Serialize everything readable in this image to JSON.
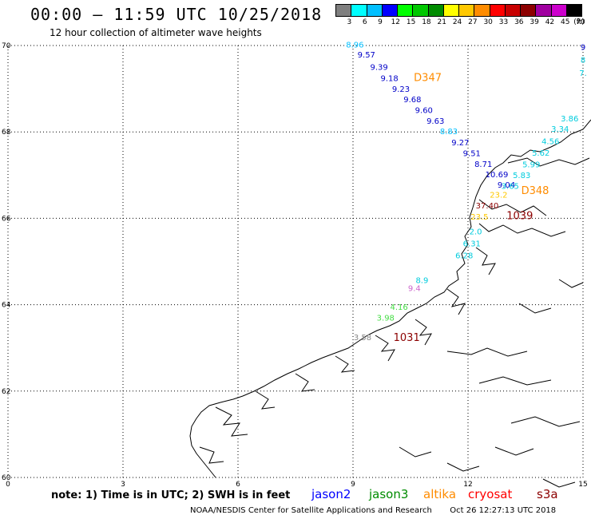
{
  "header": {
    "title": "00:00 — 11:59 UTC 10/25/2018",
    "subtitle": "12 hour collection of altimeter wave heights"
  },
  "color_scale": {
    "unit_label": "(ft)",
    "bins": [
      {
        "label": "3",
        "color": "#7f7f7f"
      },
      {
        "label": "6",
        "color": "#00ffff"
      },
      {
        "label": "9",
        "color": "#00bfff"
      },
      {
        "label": "12",
        "color": "#0000ff"
      },
      {
        "label": "15",
        "color": "#00ff00"
      },
      {
        "label": "18",
        "color": "#00c800"
      },
      {
        "label": "21",
        "color": "#008c00"
      },
      {
        "label": "24",
        "color": "#ffff00"
      },
      {
        "label": "27",
        "color": "#ffc800"
      },
      {
        "label": "30",
        "color": "#ff8c00"
      },
      {
        "label": "33",
        "color": "#ff0000"
      },
      {
        "label": "36",
        "color": "#c80000"
      },
      {
        "label": "39",
        "color": "#8c0000"
      },
      {
        "label": "42",
        "color": "#a000a0"
      },
      {
        "label": "45",
        "color": "#cc00cc"
      },
      {
        "label": "70",
        "color": "#000000"
      }
    ]
  },
  "map": {
    "x_ticks": [
      "0",
      "3",
      "6",
      "9",
      "12",
      "15"
    ],
    "y_ticks": [
      "60",
      "62",
      "64",
      "66",
      "68",
      "70"
    ],
    "observations": [
      {
        "lon": 9.05,
        "lat": 69.95,
        "text": "8.96",
        "color": "#00bfff"
      },
      {
        "lon": 9.35,
        "lat": 69.72,
        "text": "9.57",
        "color": "#0000c8"
      },
      {
        "lon": 9.68,
        "lat": 69.44,
        "text": "9.39",
        "color": "#0000c8"
      },
      {
        "lon": 9.95,
        "lat": 69.18,
        "text": "9.18",
        "color": "#0000c8"
      },
      {
        "lon": 10.25,
        "lat": 68.93,
        "text": "9.23",
        "color": "#0000c8"
      },
      {
        "lon": 10.55,
        "lat": 68.69,
        "text": "9.68",
        "color": "#0000c8"
      },
      {
        "lon": 10.85,
        "lat": 68.44,
        "text": "9.60",
        "color": "#0000c8"
      },
      {
        "lon": 11.15,
        "lat": 68.19,
        "text": "9.63",
        "color": "#0000c8"
      },
      {
        "lon": 11.5,
        "lat": 67.95,
        "text": "8.83",
        "color": "#00bfff"
      },
      {
        "lon": 11.8,
        "lat": 67.69,
        "text": "9.27",
        "color": "#0000c8"
      },
      {
        "lon": 12.1,
        "lat": 67.44,
        "text": "9.51",
        "color": "#0000c8"
      },
      {
        "lon": 12.4,
        "lat": 67.19,
        "text": "8.71",
        "color": "#0000c8"
      },
      {
        "lon": 12.75,
        "lat": 66.95,
        "text": "10.69",
        "color": "#0000c8"
      },
      {
        "lon": 13.0,
        "lat": 66.71,
        "text": "9.04",
        "color": "#0000c8"
      },
      {
        "lon": 10.95,
        "lat": 69.18,
        "text": "D347",
        "color": "#ff8c00",
        "big": true
      },
      {
        "lon": 14.65,
        "lat": 68.24,
        "text": "3.86",
        "color": "#00ccdd"
      },
      {
        "lon": 14.4,
        "lat": 68.0,
        "text": "3.34",
        "color": "#00ccdd"
      },
      {
        "lon": 14.15,
        "lat": 67.72,
        "text": "4.56",
        "color": "#00ccdd"
      },
      {
        "lon": 13.9,
        "lat": 67.45,
        "text": "5.62",
        "color": "#00ccdd"
      },
      {
        "lon": 13.65,
        "lat": 67.18,
        "text": "5.99",
        "color": "#00ccdd"
      },
      {
        "lon": 13.4,
        "lat": 66.93,
        "text": "5.83",
        "color": "#00ccdd"
      },
      {
        "lon": 13.1,
        "lat": 66.68,
        "text": "3.65",
        "color": "#00ccdd"
      },
      {
        "lon": 13.75,
        "lat": 66.56,
        "text": "D348",
        "color": "#ff8c00",
        "big": true
      },
      {
        "lon": 12.8,
        "lat": 66.48,
        "text": "23.2",
        "color": "#ffc800"
      },
      {
        "lon": 12.5,
        "lat": 66.23,
        "text": "37.40",
        "color": "#8c0000"
      },
      {
        "lon": 12.3,
        "lat": 65.97,
        "text": "23.5",
        "color": "#ffc800"
      },
      {
        "lon": 13.35,
        "lat": 65.98,
        "text": "1039",
        "color": "#8c0000",
        "big": true
      },
      {
        "lon": 12.2,
        "lat": 65.63,
        "text": "2.0",
        "color": "#00ccdd"
      },
      {
        "lon": 12.1,
        "lat": 65.35,
        "text": "6.31",
        "color": "#00ccdd"
      },
      {
        "lon": 11.9,
        "lat": 65.07,
        "text": "6.28",
        "color": "#00ccdd"
      },
      {
        "lon": 10.8,
        "lat": 64.5,
        "text": "8.9",
        "color": "#00ccdd"
      },
      {
        "lon": 10.6,
        "lat": 64.32,
        "text": "9.4",
        "color": "#cc66cc"
      },
      {
        "lon": 10.2,
        "lat": 63.88,
        "text": "4.16",
        "color": "#44dd44"
      },
      {
        "lon": 9.85,
        "lat": 63.63,
        "text": "3.98",
        "color": "#44dd44"
      },
      {
        "lon": 9.25,
        "lat": 63.18,
        "text": "3.58",
        "color": "#888888"
      },
      {
        "lon": 10.4,
        "lat": 63.16,
        "text": "1031",
        "color": "#8c0000",
        "big": true
      },
      {
        "lon": 15.0,
        "lat": 69.9,
        "text": "9",
        "color": "#0000c8"
      },
      {
        "lon": 15.0,
        "lat": 69.6,
        "text": "8",
        "color": "#00ccdd"
      },
      {
        "lon": 15.0,
        "lat": 69.3,
        "text": "7.",
        "color": "#00ccdd"
      }
    ]
  },
  "note": "note:  1)  Time is in UTC;  2)  SWH is in feet",
  "legend": [
    {
      "name": "jason2",
      "color": "#0000ff"
    },
    {
      "name": "jason3",
      "color": "#008c00"
    },
    {
      "name": "altika",
      "color": "#ff8c00"
    },
    {
      "name": "cryosat",
      "color": "#ff0000"
    },
    {
      "name": "s3a",
      "color": "#8c0000"
    }
  ],
  "footer": {
    "credit": "NOAA/NESDIS Center for Satellite Applications and Research",
    "timestamp": "Oct 26 12:27:13 UTC 2018"
  }
}
